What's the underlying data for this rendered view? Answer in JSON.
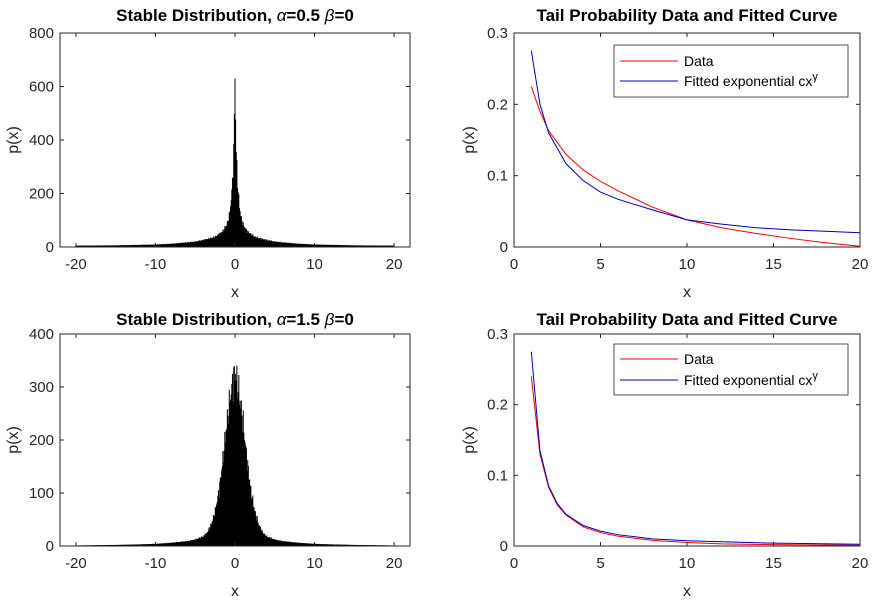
{
  "chart_data": [
    {
      "type": "histogram",
      "title_prefix": "Stable Distribution, ",
      "title_alpha_value": "=0.5",
      "title_beta_value": "=0",
      "alpha_symbol": "α",
      "beta_symbol": "β",
      "xlabel": "x",
      "ylabel": "p(x)",
      "xlim": [
        -22,
        22
      ],
      "ylim": [
        0,
        800
      ],
      "xticks": [
        -20,
        -10,
        0,
        10,
        20
      ],
      "yticks": [
        0,
        200,
        400,
        600,
        800
      ],
      "xtick_labels": [
        "-20",
        "-10",
        "0",
        "10",
        "20"
      ],
      "ytick_labels": [
        "0",
        "200",
        "400",
        "600",
        "800"
      ],
      "color": "#000000",
      "x": [
        -20,
        -15,
        -10,
        -8,
        -6,
        -5,
        -4,
        -3,
        -2.5,
        -2,
        -1.5,
        -1,
        -0.7,
        -0.5,
        -0.3,
        -0.15,
        -0.05,
        0,
        0.05,
        0.15,
        0.3,
        0.5,
        0.7,
        1,
        1.5,
        2,
        2.5,
        3,
        4,
        5,
        6,
        8,
        10,
        15,
        20
      ],
      "values": [
        5,
        6,
        9,
        12,
        17,
        20,
        26,
        33,
        38,
        48,
        60,
        85,
        120,
        170,
        250,
        370,
        520,
        668,
        520,
        370,
        250,
        170,
        120,
        85,
        60,
        48,
        38,
        33,
        26,
        20,
        17,
        12,
        9,
        6,
        5
      ]
    },
    {
      "type": "line",
      "title": "Tail Probability Data and Fitted Curve",
      "xlabel": "x",
      "ylabel": "p(x)",
      "xlim": [
        0,
        20
      ],
      "ylim": [
        0,
        0.3
      ],
      "xticks": [
        0,
        5,
        10,
        15,
        20
      ],
      "yticks": [
        0,
        0.1,
        0.2,
        0.3
      ],
      "xtick_labels": [
        "0",
        "5",
        "10",
        "15",
        "20"
      ],
      "ytick_labels": [
        "0",
        "0.1",
        "0.2",
        "0.3"
      ],
      "legend_position": "top-right",
      "series": [
        {
          "name": "Data",
          "color": "#ff0000",
          "x": [
            1,
            1.5,
            2,
            3,
            4,
            5,
            6,
            8,
            10,
            12,
            14,
            16,
            18,
            20
          ],
          "values": [
            0.225,
            0.19,
            0.163,
            0.13,
            0.108,
            0.092,
            0.079,
            0.056,
            0.038,
            0.027,
            0.019,
            0.012,
            0.006,
            0.001
          ]
        },
        {
          "name": "Fitted exponential cx",
          "name_superscript": "γ",
          "color": "#0000bb",
          "x": [
            1,
            1.5,
            2,
            3,
            4,
            5,
            6,
            8,
            10,
            12,
            14,
            16,
            18,
            20
          ],
          "values": [
            0.275,
            0.2,
            0.16,
            0.117,
            0.093,
            0.077,
            0.067,
            0.052,
            0.038,
            0.032,
            0.027,
            0.024,
            0.022,
            0.02
          ]
        }
      ]
    },
    {
      "type": "histogram",
      "title_prefix": "Stable Distribution, ",
      "title_alpha_value": "=1.5",
      "title_beta_value": "=0",
      "alpha_symbol": "α",
      "beta_symbol": "β",
      "xlabel": "x",
      "ylabel": "p(x)",
      "xlim": [
        -22,
        22
      ],
      "ylim": [
        0,
        400
      ],
      "xticks": [
        -20,
        -10,
        0,
        10,
        20
      ],
      "yticks": [
        0,
        100,
        200,
        300,
        400
      ],
      "xtick_labels": [
        "-20",
        "-10",
        "0",
        "10",
        "20"
      ],
      "ytick_labels": [
        "0",
        "100",
        "200",
        "300",
        "400"
      ],
      "color": "#000000",
      "x": [
        -20,
        -15,
        -12,
        -10,
        -8,
        -6,
        -5,
        -4,
        -3.5,
        -3,
        -2.5,
        -2,
        -1.5,
        -1,
        -0.5,
        -0.2,
        0,
        0.2,
        0.5,
        1,
        1.5,
        2,
        2.5,
        3,
        3.5,
        4,
        5,
        6,
        8,
        10,
        12,
        15,
        20
      ],
      "values": [
        1,
        2,
        3,
        4,
        6,
        9,
        12,
        18,
        25,
        40,
        65,
        105,
        165,
        235,
        290,
        315,
        330,
        315,
        290,
        235,
        165,
        105,
        65,
        40,
        25,
        18,
        12,
        9,
        6,
        4,
        3,
        2,
        1
      ]
    },
    {
      "type": "line",
      "title": "Tail Probability Data and Fitted Curve",
      "xlabel": "x",
      "ylabel": "p(x)",
      "xlim": [
        0,
        20
      ],
      "ylim": [
        0,
        0.3
      ],
      "xticks": [
        0,
        5,
        10,
        15,
        20
      ],
      "yticks": [
        0,
        0.1,
        0.2,
        0.3
      ],
      "xtick_labels": [
        "0",
        "5",
        "10",
        "15",
        "20"
      ],
      "ytick_labels": [
        "0",
        "0.1",
        "0.2",
        "0.3"
      ],
      "legend_position": "top-right",
      "series": [
        {
          "name": "Data",
          "color": "#ff0000",
          "x": [
            1,
            1.5,
            2,
            2.5,
            3,
            4,
            5,
            6,
            8,
            10,
            12,
            15,
            20
          ],
          "values": [
            0.24,
            0.13,
            0.083,
            0.058,
            0.044,
            0.027,
            0.019,
            0.014,
            0.008,
            0.005,
            0.003,
            0.002,
            0.001
          ]
        },
        {
          "name": "Fitted exponential cx",
          "name_superscript": "γ",
          "color": "#0000bb",
          "x": [
            1,
            1.5,
            2,
            2.5,
            3,
            4,
            5,
            6,
            8,
            10,
            12,
            15,
            20
          ],
          "values": [
            0.275,
            0.135,
            0.085,
            0.06,
            0.045,
            0.029,
            0.021,
            0.016,
            0.01,
            0.0075,
            0.006,
            0.004,
            0.0025
          ]
        }
      ]
    }
  ]
}
